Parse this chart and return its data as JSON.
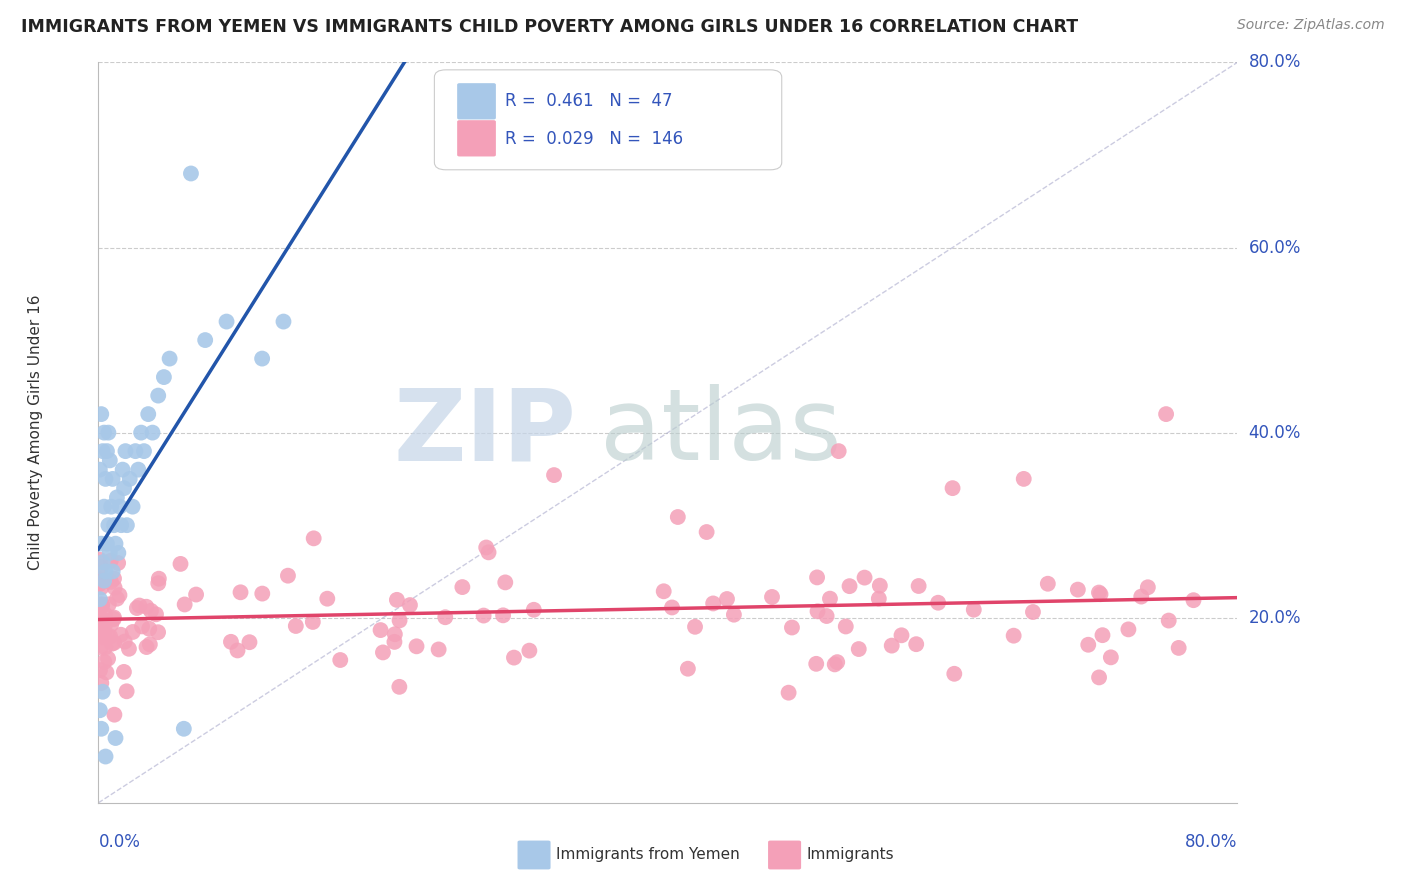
{
  "title": "IMMIGRANTS FROM YEMEN VS IMMIGRANTS CHILD POVERTY AMONG GIRLS UNDER 16 CORRELATION CHART",
  "source": "Source: ZipAtlas.com",
  "ylabel": "Child Poverty Among Girls Under 16",
  "legend_r1": "R =  0.461",
  "legend_n1": "N =  47",
  "legend_r2": "R =  0.029",
  "legend_n2": "N =  146",
  "color_blue": "#a8c8e8",
  "color_pink": "#f4a0b8",
  "line_blue": "#2255aa",
  "line_pink": "#e0446a",
  "text_color": "#3355bb",
  "watermark_color": "#d0ddf0",
  "watermark_color2": "#c8d8d8",
  "xlim": [
    0.0,
    0.8
  ],
  "ylim": [
    0.0,
    0.8
  ],
  "ytick_vals": [
    0.2,
    0.4,
    0.6,
    0.8
  ],
  "ytick_labels": [
    "20.0%",
    "40.0%",
    "60.0%",
    "80.0%"
  ]
}
